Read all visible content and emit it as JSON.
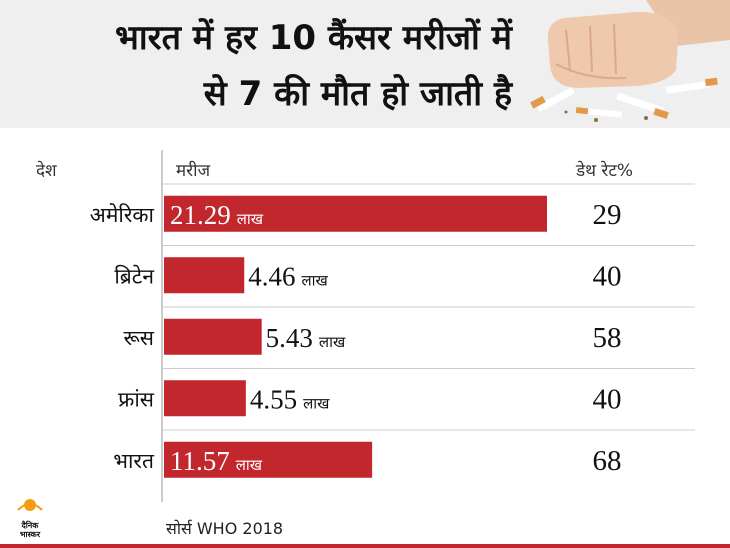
{
  "title": {
    "line1": "भारत में हर 10 कैंसर मरीजों में",
    "line2": "से 7 की मौत हो जाती है"
  },
  "colors": {
    "bar": "#c1272d",
    "header_bg": "#efefef",
    "divider": "#cccccc"
  },
  "chart_data": {
    "type": "bar",
    "orientation": "horizontal",
    "column_headers": {
      "country": "देश",
      "patients": "मरीज",
      "death_rate": "डेथ रेट%"
    },
    "unit": "लाख",
    "categories": [
      "अमेरिका",
      "ब्रिटेन",
      "रूस",
      "फ्रांस",
      "भारत"
    ],
    "values": [
      21.29,
      4.46,
      5.43,
      4.55,
      11.57
    ],
    "value_labels": [
      "21.29",
      "4.46",
      "5.43",
      "4.55",
      "11.57"
    ],
    "death_rates": [
      "29",
      "40",
      "58",
      "40",
      "68"
    ],
    "xlim": [
      0,
      21.29
    ]
  },
  "source": "सोर्स WHO 2018",
  "logo": {
    "line1": "दैनिक",
    "line2": "भास्कर"
  },
  "icons": {
    "header_image": "fist-crushing-cigarettes",
    "logo": "dainik-bhaskar-logo"
  }
}
